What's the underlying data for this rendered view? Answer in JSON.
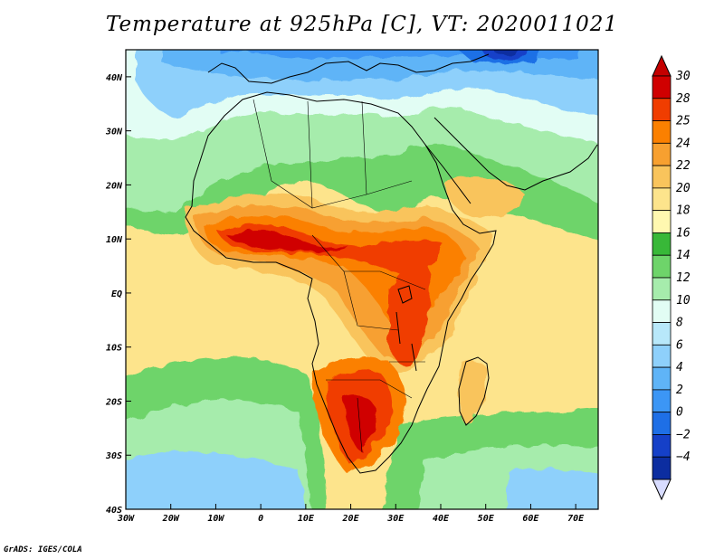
{
  "title": "Temperature at 925hPa [C], VT: 2020011021",
  "credit": "GrADS: IGES/COLA",
  "map": {
    "variable": "Temperature at 925hPa",
    "units": "C",
    "valid_time": "2020011021",
    "region": "Africa",
    "lon_range": [
      -30,
      75
    ],
    "lat_range": [
      -40,
      45
    ],
    "lon_ticks": [
      {
        "value": -30,
        "label": "30W"
      },
      {
        "value": -20,
        "label": "20W"
      },
      {
        "value": -10,
        "label": "10W"
      },
      {
        "value": 0,
        "label": "0"
      },
      {
        "value": 10,
        "label": "10E"
      },
      {
        "value": 20,
        "label": "20E"
      },
      {
        "value": 30,
        "label": "30E"
      },
      {
        "value": 40,
        "label": "40E"
      },
      {
        "value": 50,
        "label": "50E"
      },
      {
        "value": 60,
        "label": "60E"
      },
      {
        "value": 70,
        "label": "70E"
      }
    ],
    "lat_ticks": [
      {
        "value": 40,
        "label": "40N"
      },
      {
        "value": 30,
        "label": "30N"
      },
      {
        "value": 20,
        "label": "20N"
      },
      {
        "value": 10,
        "label": "10N"
      },
      {
        "value": 0,
        "label": "EQ"
      },
      {
        "value": -10,
        "label": "10S"
      },
      {
        "value": -20,
        "label": "20S"
      },
      {
        "value": -30,
        "label": "30S"
      },
      {
        "value": -40,
        "label": "40S"
      }
    ]
  },
  "colorbar": {
    "levels": [
      {
        "label": "30",
        "color": "#d00000"
      },
      {
        "label": "28",
        "color": "#f03d00"
      },
      {
        "label": "25",
        "color": "#fb8000"
      },
      {
        "label": "24",
        "color": "#f7a030"
      },
      {
        "label": "22",
        "color": "#f9c45c"
      },
      {
        "label": "20",
        "color": "#fde48c"
      },
      {
        "label": "18",
        "color": "#fff8b0"
      },
      {
        "label": "16",
        "color": "#38b838"
      },
      {
        "label": "14",
        "color": "#6ed46a"
      },
      {
        "label": "12",
        "color": "#a6ecac"
      },
      {
        "label": "10",
        "color": "#e2fdf4"
      },
      {
        "label": "8",
        "color": "#b8e8fa"
      },
      {
        "label": "6",
        "color": "#8ed0fb"
      },
      {
        "label": "4",
        "color": "#5fb4f7"
      },
      {
        "label": "2",
        "color": "#3c96f5"
      },
      {
        "label": "0",
        "color": "#1e6fe6"
      },
      {
        "label": "−2",
        "color": "#1540c8"
      },
      {
        "label": "−4",
        "color": "#0c2da0"
      }
    ],
    "over_color": "#c40000",
    "under_color": "#d8dcff"
  },
  "colors": {
    "ocean_south": "#fde48c",
    "ocean_north": "#5fb4f7",
    "land_outline": "#000000"
  }
}
